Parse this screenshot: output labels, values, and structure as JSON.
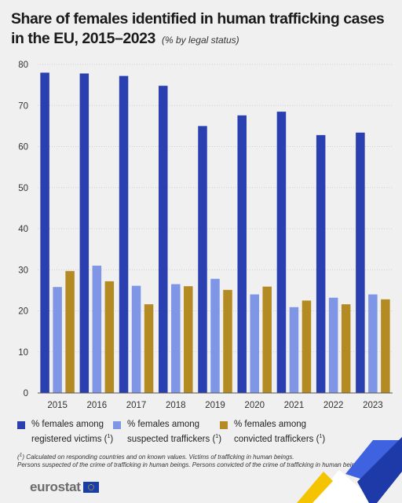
{
  "header": {
    "title": "Share of females identified in human trafficking cases in the EU, 2015–2023",
    "subtitle": "(% by legal status)"
  },
  "chart_data": {
    "type": "bar",
    "categories": [
      "2015",
      "2016",
      "2017",
      "2018",
      "2019",
      "2020",
      "2021",
      "2022",
      "2023"
    ],
    "series": [
      {
        "name": "% females among registered victims (¹)",
        "color": "#2a3fb0",
        "values": [
          78.0,
          77.8,
          77.2,
          74.8,
          65.0,
          67.6,
          68.5,
          62.8,
          63.4
        ]
      },
      {
        "name": "% females among suspected traffickers (¹)",
        "color": "#7f95e6",
        "values": [
          25.8,
          31.0,
          26.1,
          26.5,
          27.8,
          24.0,
          20.9,
          23.2,
          24.0
        ]
      },
      {
        "name": "% females among convicted traffickers (¹)",
        "color": "#b48a22",
        "values": [
          29.7,
          27.2,
          21.6,
          26.0,
          25.1,
          25.9,
          22.5,
          21.6,
          22.8
        ]
      }
    ],
    "ylim": [
      0,
      80
    ],
    "yticks": [
      0,
      10,
      20,
      30,
      40,
      50,
      60,
      70,
      80
    ],
    "grid": true,
    "legend_position": "bottom"
  },
  "legend": {
    "items": [
      {
        "line1": "% females among",
        "line2": "registered victims (",
        "sup": "1",
        "end": ")",
        "color": "#2a3fb0"
      },
      {
        "line1": "% females among",
        "line2": "suspected traffickers (",
        "sup": "1",
        "end": ")",
        "color": "#7f95e6"
      },
      {
        "line1": "% females among",
        "line2": "convicted traffickers (",
        "sup": "1",
        "end": ")",
        "color": "#b48a22"
      }
    ]
  },
  "footnote": {
    "sup": "1",
    "line1": ") Calculated on responding countries and on known values. Victims of trafficking in human beings.",
    "line2": "Persons suspected of the crime of trafficking in human beings. Persons convicted of the crime of trafficking in human beings."
  },
  "branding": {
    "logo_text": "eurostat",
    "flag_icon": "eu-flag-icon"
  }
}
